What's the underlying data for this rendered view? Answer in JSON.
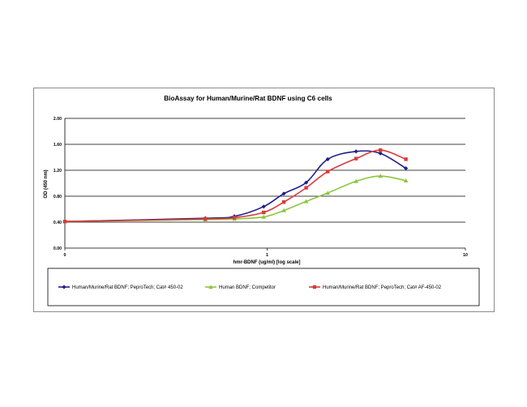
{
  "chart_data": {
    "type": "line",
    "title": "BioAssay for Human/Murine/Rat BDNF using C6 cells",
    "xlabel": "hmr-BDNF (ug/ml) [log scale]",
    "ylabel": "OD (450 nm)",
    "x_scale": "log",
    "x_ticks": [
      "0",
      "1",
      "10"
    ],
    "y_ticks": [
      "0.00",
      "0.40",
      "0.80",
      "1.20",
      "1.60",
      "2.00"
    ],
    "ylim": [
      0,
      2.0
    ],
    "grid": "horizontal",
    "legend_position": "bottom",
    "series": [
      {
        "name": "Human/Murine/Rat BDNF; PeproTech; Cat# 450-02",
        "color": "#1f1f8c",
        "marker": "diamond",
        "x": [
          0.01,
          0.488,
          0.684,
          0.961,
          1.215,
          1.574,
          2.022,
          2.81,
          3.729,
          5.011
        ],
        "y": [
          0.41,
          0.46,
          0.49,
          0.64,
          0.84,
          1.01,
          1.37,
          1.49,
          1.46,
          1.23
        ]
      },
      {
        "name": "Human BDNF; Competitor",
        "color": "#8cc63f",
        "marker": "triangle",
        "x": [
          0.01,
          0.488,
          0.684,
          0.961,
          1.215,
          1.574,
          2.022,
          2.81,
          3.729,
          5.011
        ],
        "y": [
          0.41,
          0.44,
          0.45,
          0.48,
          0.58,
          0.72,
          0.85,
          1.03,
          1.11,
          1.04
        ]
      },
      {
        "name": "Human/Murine/Rat BDNF; PeproTech; Cat# AF-450-02",
        "color": "#d93a3a",
        "marker": "square",
        "x": [
          0.01,
          0.488,
          0.684,
          0.961,
          1.215,
          1.574,
          2.022,
          2.81,
          3.729,
          5.011
        ],
        "y": [
          0.41,
          0.45,
          0.47,
          0.55,
          0.71,
          0.93,
          1.18,
          1.38,
          1.51,
          1.37
        ]
      }
    ]
  }
}
